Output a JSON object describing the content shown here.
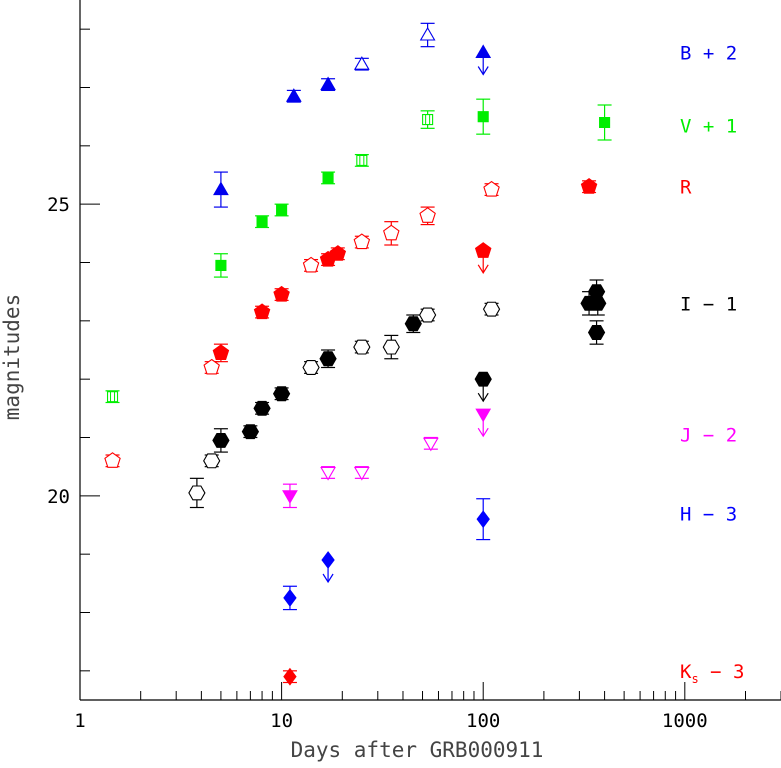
{
  "chart_data": {
    "type": "scatter",
    "xlabel": "Days after GRB000911",
    "ylabel": "magnitudes",
    "xscale": "log",
    "xlim": [
      1,
      3000
    ],
    "ylim": [
      28.5,
      16.5
    ],
    "y_inverted": true,
    "grid": false,
    "x_tick_labels": [
      "1",
      "10",
      "100",
      "1000"
    ],
    "y_tick_labels": [
      "20",
      "25"
    ],
    "x_major_ticks": [
      1,
      10,
      100,
      1000
    ],
    "y_major_ticks": [
      20,
      25
    ],
    "y_minor_step": 1,
    "legend": "right-side text labels",
    "series": [
      {
        "name": "Ks − 3",
        "label_main": "K",
        "label_sub": "s",
        "label_rest": " − 3",
        "color": "#ff0000",
        "label_y": 17.0,
        "points": [
          {
            "x": 11,
            "y": 16.9,
            "err": 0.1,
            "marker": "diamond",
            "filled": true
          }
        ]
      },
      {
        "name": "H − 3",
        "label_main": "H − 3",
        "label_sub": "",
        "label_rest": "",
        "color": "#0000ff",
        "label_y": 19.7,
        "points": [
          {
            "x": 11,
            "y": 18.25,
            "err": 0.2,
            "marker": "diamond",
            "filled": true
          },
          {
            "x": 17,
            "y": 18.9,
            "err": 0,
            "marker": "diamond",
            "filled": true,
            "limit": true
          },
          {
            "x": 100,
            "y": 19.6,
            "err": 0.35,
            "marker": "diamond",
            "filled": true
          }
        ]
      },
      {
        "name": "J − 2",
        "label_main": "J − 2",
        "label_sub": "",
        "label_rest": "",
        "color": "#ff00ff",
        "label_y": 21.05,
        "points": [
          {
            "x": 11,
            "y": 20.0,
            "err": 0.2,
            "marker": "tri-down",
            "filled": true
          },
          {
            "x": 17,
            "y": 20.4,
            "err": 0.1,
            "marker": "tri-down",
            "filled": false
          },
          {
            "x": 25,
            "y": 20.4,
            "err": 0.1,
            "marker": "tri-down",
            "filled": false
          },
          {
            "x": 55,
            "y": 20.9,
            "err": 0.1,
            "marker": "tri-down",
            "filled": false
          },
          {
            "x": 100,
            "y": 21.4,
            "err": 0,
            "marker": "tri-down",
            "filled": true,
            "limit": true
          }
        ]
      },
      {
        "name": "I − 1",
        "label_main": "I − 1",
        "label_sub": "",
        "label_rest": "",
        "color": "#000000",
        "label_y": 23.3,
        "points": [
          {
            "x": 3.8,
            "y": 20.05,
            "err": 0.25,
            "marker": "hexagon",
            "filled": false
          },
          {
            "x": 4.5,
            "y": 20.6,
            "err": 0.1,
            "marker": "hexagon",
            "filled": false
          },
          {
            "x": 5.0,
            "y": 20.95,
            "err": 0.2,
            "marker": "hexagon",
            "filled": true
          },
          {
            "x": 7.0,
            "y": 21.1,
            "err": 0.1,
            "marker": "hexagon",
            "filled": true
          },
          {
            "x": 8.0,
            "y": 21.5,
            "err": 0.1,
            "marker": "hexagon",
            "filled": true
          },
          {
            "x": 10.0,
            "y": 21.75,
            "err": 0.1,
            "marker": "hexagon",
            "filled": true
          },
          {
            "x": 14.0,
            "y": 22.2,
            "err": 0.1,
            "marker": "hexagon",
            "filled": false
          },
          {
            "x": 17.0,
            "y": 22.35,
            "err": 0.15,
            "marker": "hexagon",
            "filled": true
          },
          {
            "x": 25.0,
            "y": 22.55,
            "err": 0.1,
            "marker": "hexagon",
            "filled": false
          },
          {
            "x": 35.0,
            "y": 22.55,
            "err": 0.2,
            "marker": "hexagon",
            "filled": false
          },
          {
            "x": 45.0,
            "y": 22.95,
            "err": 0.15,
            "marker": "hexagon",
            "filled": true
          },
          {
            "x": 53.0,
            "y": 23.1,
            "err": 0.1,
            "marker": "hexagon",
            "filled": false
          },
          {
            "x": 100.0,
            "y": 22.0,
            "err": 0,
            "marker": "hexagon",
            "filled": true,
            "limit": true
          },
          {
            "x": 110.0,
            "y": 23.2,
            "err": 0.1,
            "marker": "hexagon",
            "filled": false
          },
          {
            "x": 335.0,
            "y": 23.3,
            "err": 0.2,
            "marker": "hexagon",
            "filled": true
          },
          {
            "x": 365.0,
            "y": 22.8,
            "err": 0.2,
            "marker": "hexagon",
            "filled": true
          },
          {
            "x": 365.0,
            "y": 23.5,
            "err": 0.2,
            "marker": "hexagon",
            "filled": true
          },
          {
            "x": 370.0,
            "y": 23.3,
            "err": 0.2,
            "marker": "hexagon",
            "filled": true
          }
        ]
      },
      {
        "name": "R",
        "label_main": "R",
        "label_sub": "",
        "label_rest": "",
        "color": "#ff0000",
        "label_y": 25.3,
        "points": [
          {
            "x": 1.45,
            "y": 20.6,
            "err": 0.1,
            "marker": "pentagon",
            "filled": false
          },
          {
            "x": 4.5,
            "y": 22.2,
            "err": 0.1,
            "marker": "pentagon",
            "filled": false
          },
          {
            "x": 5.0,
            "y": 22.45,
            "err": 0.15,
            "marker": "pentagon",
            "filled": true
          },
          {
            "x": 8.0,
            "y": 23.15,
            "err": 0.1,
            "marker": "pentagon",
            "filled": true
          },
          {
            "x": 10.0,
            "y": 23.45,
            "err": 0.1,
            "marker": "pentagon",
            "filled": true
          },
          {
            "x": 14.0,
            "y": 23.95,
            "err": 0.1,
            "marker": "pentagon",
            "filled": false
          },
          {
            "x": 17.0,
            "y": 24.05,
            "err": 0.1,
            "marker": "pentagon",
            "filled": true
          },
          {
            "x": 19.0,
            "y": 24.15,
            "err": 0.1,
            "marker": "pentagon",
            "filled": true
          },
          {
            "x": 25.0,
            "y": 24.35,
            "err": 0.1,
            "marker": "pentagon",
            "filled": false
          },
          {
            "x": 35.0,
            "y": 24.5,
            "err": 0.2,
            "marker": "pentagon",
            "filled": false
          },
          {
            "x": 53.0,
            "y": 24.8,
            "err": 0.15,
            "marker": "pentagon",
            "filled": false
          },
          {
            "x": 100.0,
            "y": 24.2,
            "err": 0,
            "marker": "pentagon",
            "filled": true,
            "limit": true
          },
          {
            "x": 110.0,
            "y": 25.25,
            "err": 0.1,
            "marker": "pentagon",
            "filled": false
          },
          {
            "x": 335.0,
            "y": 25.3,
            "err": 0.1,
            "marker": "pentagon",
            "filled": true
          }
        ]
      },
      {
        "name": "V + 1",
        "label_main": "V + 1",
        "label_sub": "",
        "label_rest": "",
        "color": "#00ee00",
        "label_y": 26.35,
        "points": [
          {
            "x": 1.45,
            "y": 21.7,
            "err": 0.1,
            "marker": "square",
            "filled": false
          },
          {
            "x": 5.0,
            "y": 23.95,
            "err": 0.2,
            "marker": "square",
            "filled": true
          },
          {
            "x": 8.0,
            "y": 24.7,
            "err": 0.1,
            "marker": "square",
            "filled": true
          },
          {
            "x": 10.0,
            "y": 24.9,
            "err": 0.1,
            "marker": "square",
            "filled": true
          },
          {
            "x": 17.0,
            "y": 25.45,
            "err": 0.1,
            "marker": "square",
            "filled": true
          },
          {
            "x": 25.0,
            "y": 25.75,
            "err": 0.1,
            "marker": "square",
            "filled": false
          },
          {
            "x": 53.0,
            "y": 26.45,
            "err": 0.15,
            "marker": "square",
            "filled": false
          },
          {
            "x": 100.0,
            "y": 26.5,
            "err": 0.3,
            "marker": "square",
            "filled": true
          },
          {
            "x": 400.0,
            "y": 26.4,
            "err": 0.3,
            "marker": "square",
            "filled": true
          }
        ]
      },
      {
        "name": "B + 2",
        "label_main": "B + 2",
        "label_sub": "",
        "label_rest": "",
        "color": "#0000ee",
        "label_y": 27.6,
        "points": [
          {
            "x": 5.0,
            "y": 25.25,
            "err": 0.3,
            "marker": "tri-up",
            "filled": true
          },
          {
            "x": 11.5,
            "y": 26.85,
            "err": 0.1,
            "marker": "tri-up",
            "filled": true
          },
          {
            "x": 17.0,
            "y": 27.05,
            "err": 0.1,
            "marker": "tri-up",
            "filled": true
          },
          {
            "x": 25.0,
            "y": 27.4,
            "err": 0.1,
            "marker": "tri-up",
            "filled": false
          },
          {
            "x": 53.0,
            "y": 27.9,
            "err": 0.2,
            "marker": "tri-up",
            "filled": false
          },
          {
            "x": 100.0,
            "y": 27.6,
            "err": 0,
            "marker": "tri-up",
            "filled": true,
            "limit": true
          }
        ]
      }
    ]
  }
}
